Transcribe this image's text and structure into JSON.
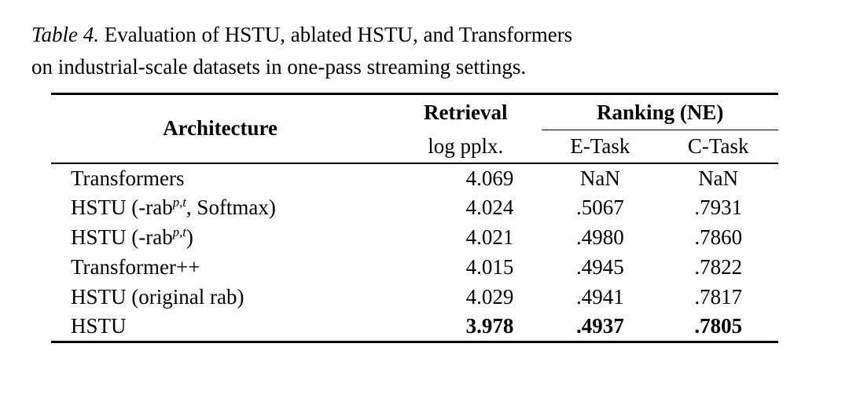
{
  "caption": {
    "label": "Table 4.",
    "line1": "Evaluation of HSTU, ablated HSTU, and Transformers",
    "line2": "on industrial-scale datasets in one-pass streaming settings."
  },
  "table": {
    "header": {
      "architecture": "Architecture",
      "retrieval": "Retrieval",
      "retrieval_sub": "log pplx.",
      "ranking": "Ranking (NE)",
      "e_task": "E-Task",
      "c_task": "C-Task"
    },
    "rows": [
      {
        "arch_pre": "Transformers",
        "retrieval": "4.069",
        "e_task": "NaN",
        "c_task": "NaN"
      },
      {
        "arch_pre": "HSTU (-rab",
        "arch_sup": "p,t",
        "arch_post": ", Softmax)",
        "retrieval": "4.024",
        "e_task": ".5067",
        "c_task": ".7931"
      },
      {
        "arch_pre": "HSTU (-rab",
        "arch_sup": "p,t",
        "arch_post": ")",
        "retrieval": "4.021",
        "e_task": ".4980",
        "c_task": ".7860"
      },
      {
        "arch_pre": "Transformer++",
        "retrieval": "4.015",
        "e_task": ".4945",
        "c_task": ".7822"
      },
      {
        "arch_pre": "HSTU (original rab)",
        "retrieval": "4.029",
        "e_task": ".4941",
        "c_task": ".7817"
      },
      {
        "arch_pre": "HSTU",
        "retrieval": "3.978",
        "e_task": ".4937",
        "c_task": ".7805"
      }
    ]
  }
}
